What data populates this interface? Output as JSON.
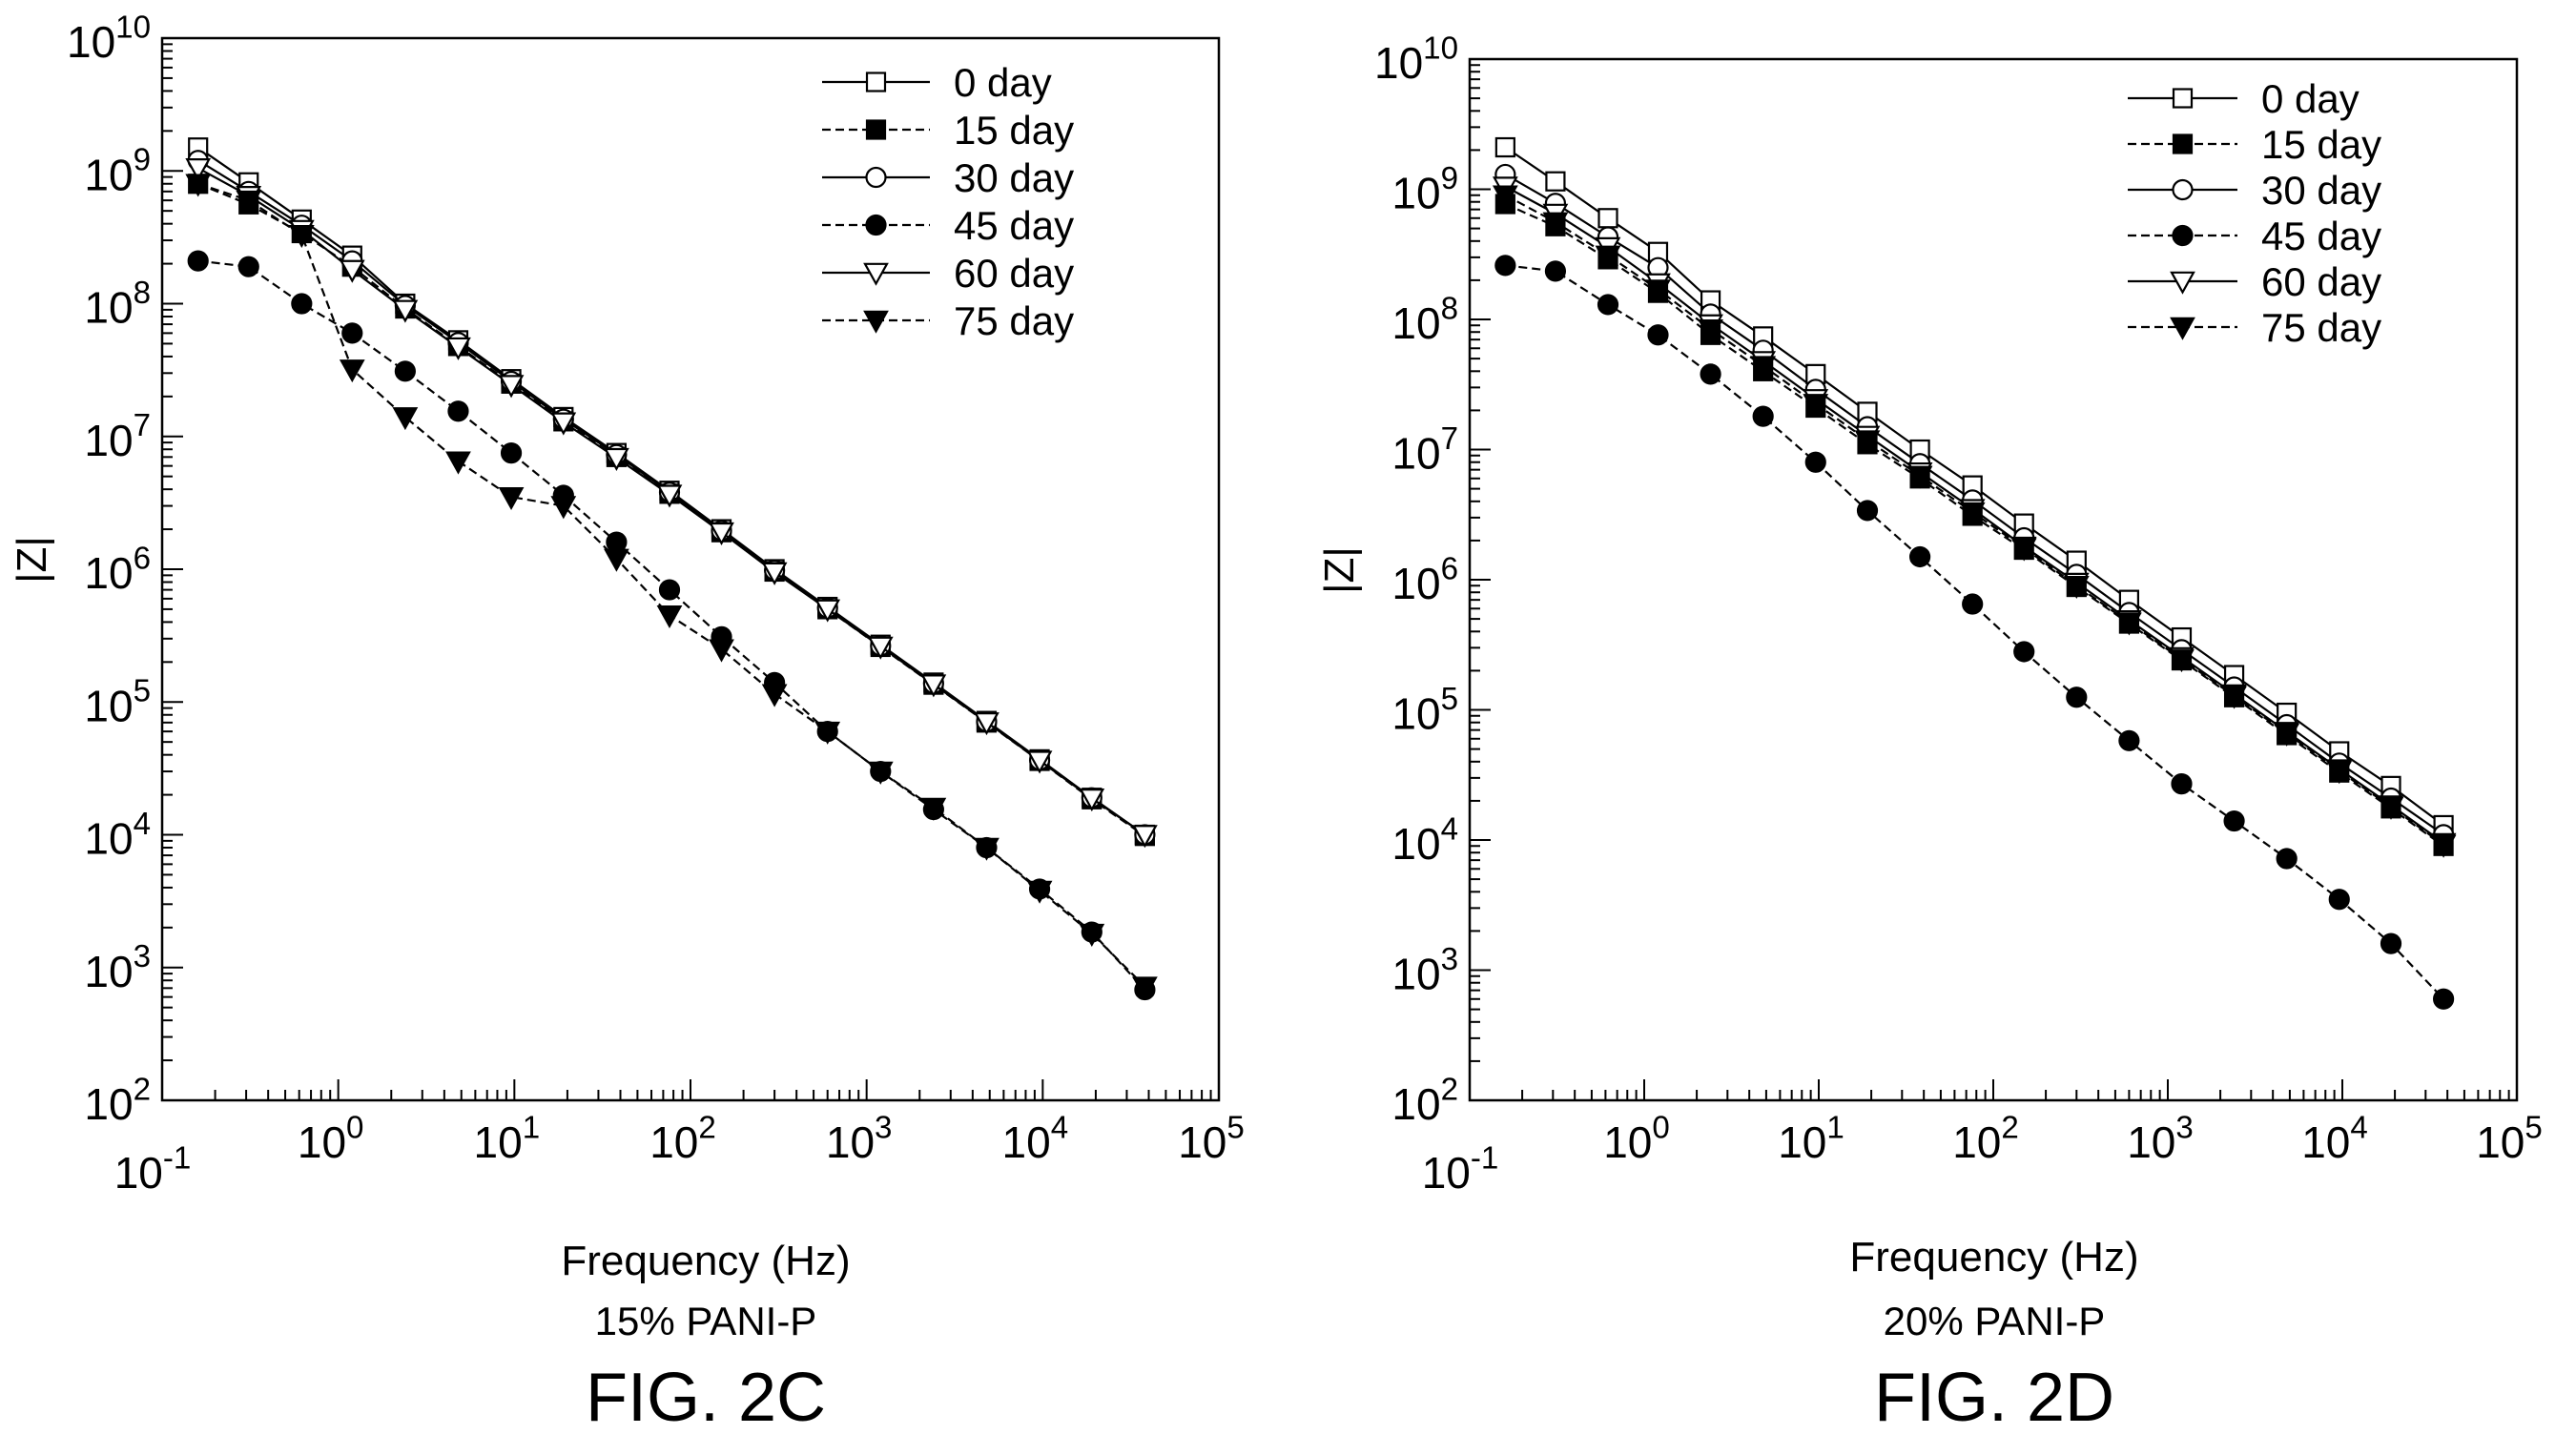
{
  "figures": [
    {
      "xlabel": "Frequency (Hz)",
      "subtitle": "15% PANI-P",
      "caption": "FIG. 2C"
    },
    {
      "xlabel": "Frequency (Hz)",
      "subtitle": "20% PANI-P",
      "caption": "FIG. 2D"
    }
  ],
  "chart_data": [
    {
      "type": "line",
      "title": "",
      "xlabel": "Frequency (Hz)",
      "ylabel": "|Z|",
      "xscale": "log",
      "yscale": "log",
      "xlim": [
        0.1,
        100000
      ],
      "ylim": [
        100,
        10000000000
      ],
      "x_ticks": [
        "10-1",
        "100",
        "101",
        "102",
        "103",
        "104",
        "105"
      ],
      "y_ticks": [
        "102",
        "103",
        "104",
        "105",
        "106",
        "107",
        "108",
        "109",
        "1010"
      ],
      "grid": false,
      "legend_position": "top-right",
      "x": [
        0.16,
        0.31,
        0.62,
        1.2,
        2.4,
        4.8,
        9.6,
        19,
        38,
        76,
        150,
        300,
        600,
        1200,
        2400,
        4800,
        9600,
        19000,
        38000
      ],
      "series": [
        {
          "name": "0 day",
          "marker": "square-open",
          "line": "solid",
          "values": [
            1500000000,
            820000000,
            430000000,
            230000000,
            100000000,
            53000000,
            27000000,
            14000000,
            7500000,
            3900000,
            2000000,
            1000000,
            520000,
            270000,
            140000,
            72000,
            37000,
            19000,
            10000
          ]
        },
        {
          "name": "15 day",
          "marker": "square-filled",
          "line": "dashed",
          "values": [
            800000000,
            560000000,
            340000000,
            190000000,
            92000000,
            48000000,
            25000000,
            13000000,
            7000000,
            3700000,
            1900000,
            960000,
            500000,
            260000,
            135000,
            70000,
            36000,
            18500,
            9800
          ]
        },
        {
          "name": "30 day",
          "marker": "circle-open",
          "line": "solid",
          "values": [
            1200000000,
            700000000,
            390000000,
            210000000,
            97000000,
            51000000,
            26000000,
            13500000,
            7300000,
            3800000,
            1950000,
            980000,
            510000,
            265000,
            138000,
            71000,
            36500,
            19000,
            10000
          ]
        },
        {
          "name": "45 day",
          "marker": "circle-filled",
          "line": "dashed",
          "values": [
            210000000,
            190000000,
            100000000,
            60000000,
            31000000,
            15500000,
            7500000,
            3600000,
            1600000,
            700000,
            310000,
            140000,
            60000,
            30000,
            15500,
            8000,
            3900,
            1850,
            680
          ]
        },
        {
          "name": "60 day",
          "marker": "triangle-down-open",
          "line": "solid",
          "values": [
            1050000000,
            650000000,
            360000000,
            180000000,
            90000000,
            47000000,
            24500000,
            12800000,
            6900000,
            3650000,
            1900000,
            950000,
            500000,
            262000,
            136000,
            70500,
            36200,
            18800,
            10000
          ]
        },
        {
          "name": "75 day",
          "marker": "triangle-down-filled",
          "line": "dashed",
          "values": [
            800000000,
            600000000,
            330000000,
            32000000,
            14000000,
            6500000,
            3500000,
            3000000,
            1200000,
            450000,
            250000,
            115000,
            60000,
            30000,
            16000,
            8000,
            3800,
            1800,
            720
          ]
        }
      ]
    },
    {
      "type": "line",
      "title": "",
      "xlabel": "Frequency (Hz)",
      "ylabel": "|Z|",
      "xscale": "log",
      "yscale": "log",
      "xlim": [
        0.1,
        100000
      ],
      "ylim": [
        100,
        10000000000
      ],
      "x_ticks": [
        "10-1",
        "100",
        "101",
        "102",
        "103",
        "104",
        "105"
      ],
      "y_ticks": [
        "102",
        "103",
        "104",
        "105",
        "106",
        "107",
        "108",
        "109",
        "1010"
      ],
      "grid": false,
      "legend_position": "top-right",
      "x": [
        0.16,
        0.31,
        0.62,
        1.2,
        2.4,
        4.8,
        9.6,
        19,
        38,
        76,
        150,
        300,
        600,
        1200,
        2400,
        4800,
        9600,
        19000,
        38000
      ],
      "series": [
        {
          "name": "0 day",
          "marker": "square-open",
          "line": "solid",
          "values": [
            2100000000,
            1150000000,
            600000000,
            330000000,
            140000000,
            74000000,
            38000000,
            19500000,
            10000000,
            5300000,
            2700000,
            1400000,
            700000,
            360000,
            185000,
            95000,
            48000,
            26000,
            13000
          ]
        },
        {
          "name": "15 day",
          "marker": "square-filled",
          "line": "dashed",
          "values": [
            770000000,
            520000000,
            290000000,
            160000000,
            76000000,
            40000000,
            21000000,
            11000000,
            6000000,
            3100000,
            1700000,
            880000,
            460000,
            240000,
            125000,
            64000,
            33000,
            17500,
            9000
          ]
        },
        {
          "name": "30 day",
          "marker": "circle-open",
          "line": "solid",
          "values": [
            1300000000,
            780000000,
            430000000,
            250000000,
            110000000,
            58000000,
            29000000,
            15000000,
            7800000,
            4100000,
            2100000,
            1100000,
            560000,
            290000,
            150000,
            77000,
            39000,
            21000,
            11000
          ]
        },
        {
          "name": "45 day",
          "marker": "circle-filled",
          "line": "dashed",
          "values": [
            260000000,
            235000000,
            130000000,
            76000000,
            38000000,
            18000000,
            8000000,
            3400000,
            1500000,
            650000,
            280000,
            125000,
            58000,
            27000,
            14000,
            7200,
            3500,
            1600,
            600
          ]
        },
        {
          "name": "60 day",
          "marker": "triangle-down-open",
          "line": "solid",
          "values": [
            1050000000,
            650000000,
            360000000,
            190000000,
            92000000,
            48000000,
            24500000,
            12800000,
            6700000,
            3500000,
            1800000,
            950000,
            490000,
            255000,
            132000,
            68000,
            35000,
            18500,
            9500
          ]
        },
        {
          "name": "75 day",
          "marker": "triangle-down-filled",
          "line": "dashed",
          "values": [
            900000000,
            560000000,
            310000000,
            170000000,
            84000000,
            44000000,
            22500000,
            11800000,
            6300000,
            3300000,
            1750000,
            900000,
            470000,
            245000,
            128000,
            66000,
            34000,
            18000,
            9200
          ]
        }
      ]
    }
  ]
}
